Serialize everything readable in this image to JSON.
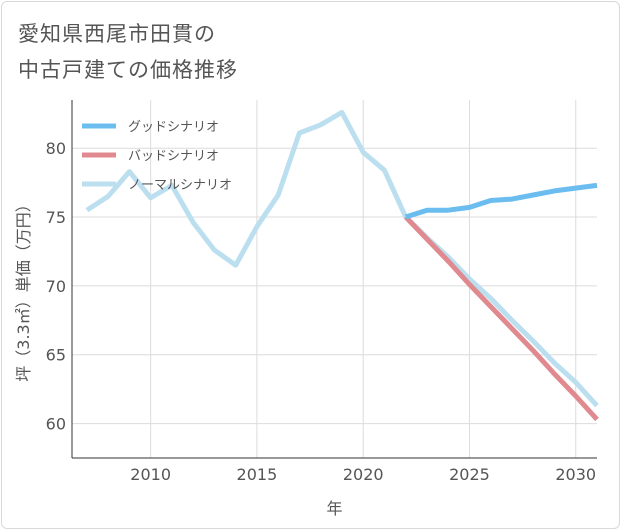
{
  "title_line1": "愛知県西尾市田貫の",
  "title_line2": "中古戸建ての価格推移",
  "chart_data": {
    "type": "line",
    "title": "愛知県西尾市田貫の中古戸建ての価格推移",
    "xlabel": "年",
    "ylabel": "坪（3.3㎡）単価（万円）",
    "xlim": [
      2006.3,
      2031
    ],
    "ylim": [
      57.5,
      83.5
    ],
    "xticks": [
      2010,
      2015,
      2020,
      2025,
      2030
    ],
    "yticks": [
      60,
      65,
      70,
      75,
      80
    ],
    "grid": true,
    "legend_position": "top-left",
    "series": [
      {
        "name": "グッドシナリオ",
        "color": "#6bbcef",
        "x": [
          2022,
          2023,
          2024,
          2025,
          2026,
          2027,
          2028,
          2029,
          2030,
          2031
        ],
        "y": [
          75.0,
          75.5,
          75.5,
          75.7,
          76.2,
          76.3,
          76.6,
          76.9,
          77.1,
          77.3
        ]
      },
      {
        "name": "バッドシナリオ",
        "color": "#e08a90",
        "x": [
          2022,
          2023,
          2024,
          2025,
          2026,
          2027,
          2028,
          2029,
          2030,
          2031
        ],
        "y": [
          75.0,
          73.4,
          71.8,
          70.1,
          68.5,
          66.9,
          65.3,
          63.6,
          62.0,
          60.3
        ]
      },
      {
        "name": "ノーマルシナリオ",
        "color": "#bcdff0",
        "x": [
          2007,
          2008,
          2009,
          2010,
          2011,
          2012,
          2013,
          2014,
          2015,
          2016,
          2017,
          2018,
          2019,
          2020,
          2021,
          2022,
          2023,
          2024,
          2025,
          2026,
          2027,
          2028,
          2029,
          2030,
          2031
        ],
        "y": [
          75.5,
          76.5,
          78.3,
          76.4,
          77.3,
          74.6,
          72.6,
          71.5,
          74.3,
          76.6,
          81.1,
          81.7,
          82.6,
          79.7,
          78.4,
          75.0,
          73.5,
          72.1,
          70.5,
          69.1,
          67.5,
          66.0,
          64.4,
          63.0,
          61.3
        ]
      }
    ]
  }
}
